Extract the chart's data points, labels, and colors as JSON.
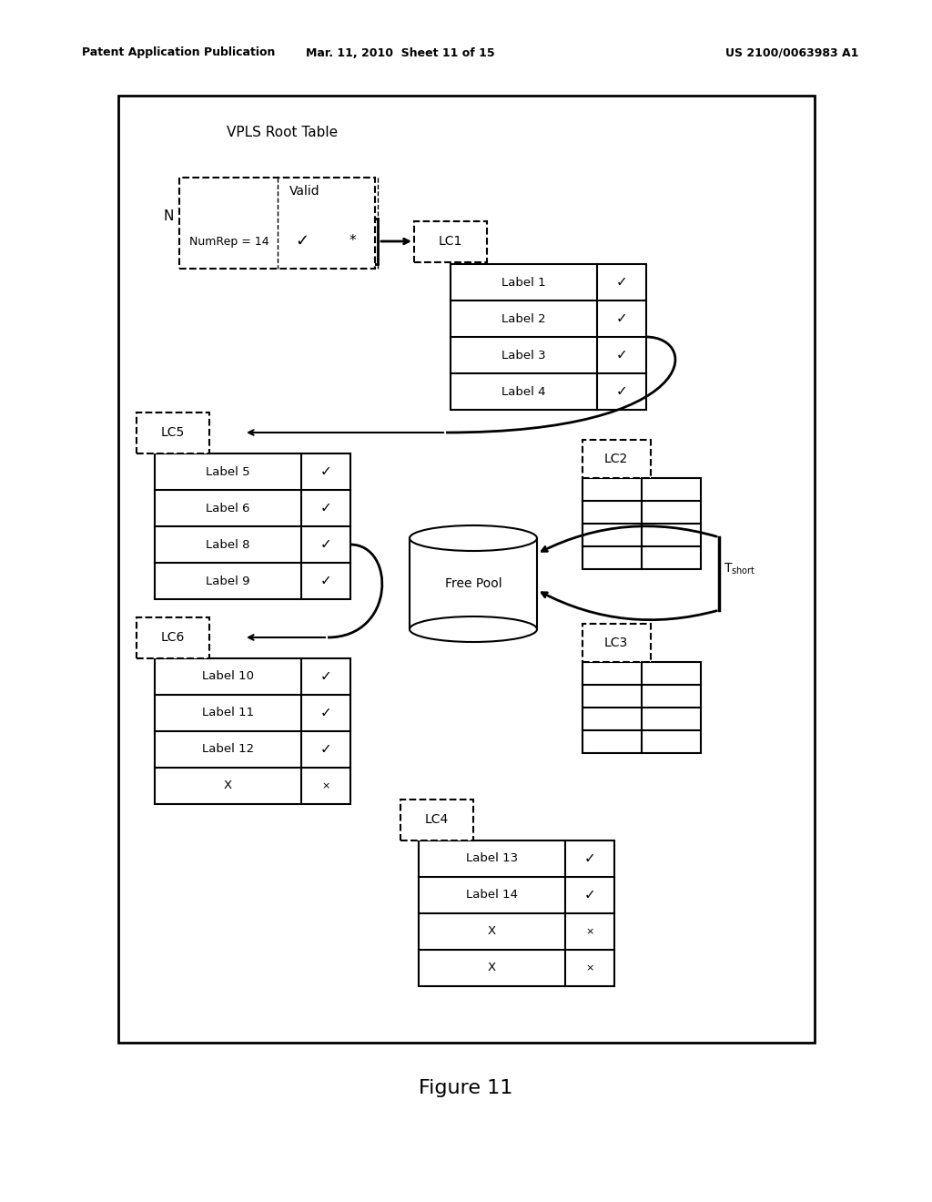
{
  "bg_color": "#ffffff",
  "header_left": "Patent Application Publication",
  "header_mid": "Mar. 11, 2010  Sheet 11 of 15",
  "header_right": "US 2100/0063983 A1",
  "figure_caption": "Figure 11",
  "diagram_title": "VPLS Root Table",
  "check": "✓",
  "small_x": "×",
  "lc1_labels": [
    "Label 1",
    "Label 2",
    "Label 3",
    "Label 4"
  ],
  "lc1_checks": [
    true,
    true,
    true,
    true
  ],
  "lc5_labels": [
    "Label 5",
    "Label 6",
    "Label 8",
    "Label 9"
  ],
  "lc5_checks": [
    true,
    true,
    true,
    true
  ],
  "lc6_labels": [
    "Label 10",
    "Label 11",
    "Label 12",
    "X"
  ],
  "lc6_checks": [
    true,
    true,
    true,
    false
  ],
  "lc4_labels": [
    "Label 13",
    "Label 14",
    "X",
    "X"
  ],
  "lc4_checks": [
    true,
    true,
    false,
    false
  ]
}
